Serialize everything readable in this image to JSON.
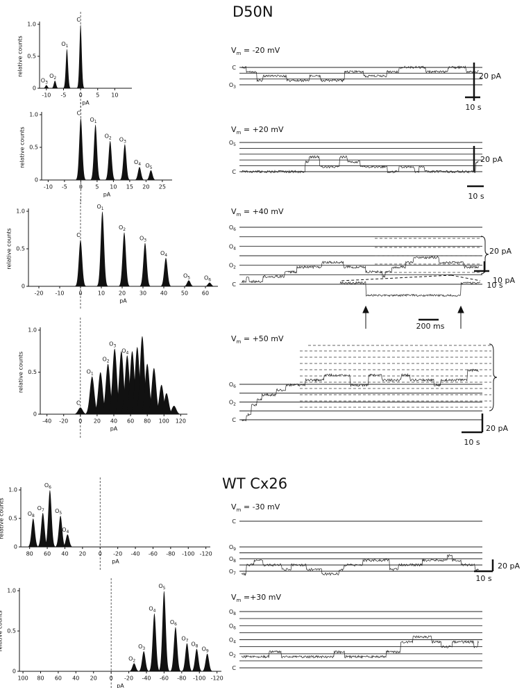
{
  "sections": [
    {
      "title": "D50N",
      "histograms": [
        {
          "ylabel": "relative counts",
          "xlabel": "pA",
          "xlim": [
            -12,
            15
          ],
          "xticks": [
            -10,
            -5,
            0,
            5,
            10
          ],
          "ylim": [
            0,
            1
          ],
          "yticks": [
            0,
            0.5,
            {
              "value": 1,
              "label": "1.0"
            }
          ],
          "peaks": [
            {
              "x": 0,
              "height": 1.0,
              "label": "C"
            },
            {
              "x": -4,
              "height": 0.62,
              "label": "O",
              "sub": "1"
            },
            {
              "x": -7.5,
              "height": 0.12,
              "label": "O",
              "sub": "2"
            },
            {
              "x": -10,
              "height": 0.05,
              "label": "O",
              "sub": "3"
            }
          ]
        },
        {
          "ylabel": "relative counts",
          "xlabel": "pA",
          "xlim": [
            -12,
            28
          ],
          "xticks": [
            -10,
            -5,
            0,
            5,
            10,
            15,
            20,
            25
          ],
          "ylim": [
            0,
            1
          ],
          "yticks": [
            0,
            0.5,
            {
              "value": 1,
              "label": "1.0"
            }
          ],
          "peaks": [
            {
              "x": 0,
              "height": 0.95,
              "label": "C"
            },
            {
              "x": 4.5,
              "height": 0.85,
              "label": "O",
              "sub": "1"
            },
            {
              "x": 9,
              "height": 0.6,
              "label": "O",
              "sub": "2"
            },
            {
              "x": 13.5,
              "height": 0.55,
              "label": "O",
              "sub": "3"
            },
            {
              "x": 18,
              "height": 0.2,
              "label": "O",
              "sub": "4"
            },
            {
              "x": 21.5,
              "height": 0.15,
              "label": "O",
              "sub": "5"
            }
          ]
        },
        {
          "ylabel": "relative counts",
          "xlabel": "pA",
          "xlim": [
            -25,
            66
          ],
          "xticks": [
            -20,
            -10,
            0,
            10,
            20,
            30,
            40,
            50,
            60
          ],
          "ylim": [
            0,
            1
          ],
          "yticks": [
            0,
            0.5,
            {
              "value": 1,
              "label": "1.0"
            }
          ],
          "peaks": [
            {
              "x": 0,
              "height": 0.62,
              "label": "C"
            },
            {
              "x": 10.5,
              "height": 1.0,
              "label": "O",
              "sub": "1"
            },
            {
              "x": 21,
              "height": 0.72,
              "label": "O",
              "sub": "2"
            },
            {
              "x": 31,
              "height": 0.58,
              "label": "O",
              "sub": "3"
            },
            {
              "x": 41,
              "height": 0.38,
              "label": "O",
              "sub": "4"
            },
            {
              "x": 52,
              "height": 0.08,
              "label": "O",
              "sub": "5"
            },
            {
              "x": 62,
              "height": 0.05,
              "label": "O",
              "sub": "6"
            }
          ]
        },
        {
          "ylabel": "relative counts",
          "xlabel": "pA",
          "xlim": [
            -48,
            128
          ],
          "xticks": [
            -40,
            -20,
            0,
            20,
            40,
            60,
            80,
            100,
            120
          ],
          "ylim": [
            0,
            1
          ],
          "yticks": [
            0,
            0.5,
            {
              "value": 1,
              "label": "1.0"
            }
          ],
          "peaks": [
            {
              "x": 0,
              "height": 0.08,
              "label": "C"
            },
            {
              "x": 14,
              "height": 0.45,
              "label": "O",
              "sub": "1"
            },
            {
              "x": 24,
              "height": 0.5,
              "label": null
            },
            {
              "x": 33,
              "height": 0.6,
              "label": "O",
              "sub": "2"
            },
            {
              "x": 41,
              "height": 0.78,
              "label": "O",
              "sub": "3"
            },
            {
              "x": 49,
              "height": 0.75,
              "label": null
            },
            {
              "x": 56,
              "height": 0.7,
              "label": "O",
              "sub": "4"
            },
            {
              "x": 62,
              "height": 0.75,
              "label": null
            },
            {
              "x": 68,
              "height": 0.8,
              "label": null
            },
            {
              "x": 74,
              "height": 0.93,
              "label": null
            },
            {
              "x": 80,
              "height": 0.6,
              "label": null
            },
            {
              "x": 88,
              "height": 0.55,
              "label": null
            },
            {
              "x": 97,
              "height": 0.35,
              "label": null
            },
            {
              "x": 103,
              "height": 0.25,
              "label": null
            },
            {
              "x": 112,
              "height": 0.1,
              "label": null
            }
          ]
        }
      ],
      "traces": [
        {
          "v": "V",
          "vsub": "m",
          "rest": " = -20 mV",
          "levels": [
            {
              "label": "C"
            },
            null,
            null,
            {
              "label": "O",
              "sub": "3"
            }
          ],
          "current": "20 pA",
          "time": "10 s"
        },
        {
          "v": "V",
          "vsub": "m",
          "rest": " = +20 mV",
          "levels": [
            {
              "label": "O",
              "sub": "5"
            },
            null,
            null,
            null,
            null,
            {
              "label": "C"
            }
          ],
          "current": "20 pA",
          "time": "10 s"
        },
        {
          "v": "V",
          "vsub": "m",
          "rest": " = +40 mV",
          "levels": [
            {
              "label": "O",
              "sub": "6"
            },
            null,
            {
              "label": "O",
              "sub": "4"
            },
            null,
            {
              "label": "O",
              "sub": "2"
            },
            null,
            {
              "label": "C"
            }
          ],
          "current": "20 pA",
          "time": "10 s",
          "inset": {
            "current": "10 pA",
            "time": "200 ms"
          }
        },
        {
          "v": "V",
          "vsub": "m",
          "rest": " = +50 mV",
          "levels": [
            {
              "label": "O",
              "sub": "6"
            },
            null,
            {
              "label": "O",
              "sub": "2"
            },
            null,
            {
              "label": "C"
            }
          ],
          "current": "20 pA",
          "time": "10 s"
        }
      ]
    },
    {
      "title": "WT Cx26",
      "histograms": [
        {
          "ylabel": "relative counts",
          "xlabel": "pA",
          "xlim": [
            90,
            -125
          ],
          "xticks": [
            80,
            60,
            40,
            20,
            0,
            -20,
            -40,
            -60,
            -80,
            -100,
            -120
          ],
          "ylim": [
            0,
            1
          ],
          "yticks": [
            0,
            0.5,
            {
              "value": 1,
              "label": "1.0"
            }
          ],
          "peaks": [
            {
              "x": 76,
              "height": 0.5,
              "label": "O",
              "sub": "8"
            },
            {
              "x": 65,
              "height": 0.6,
              "label": "O",
              "sub": "7"
            },
            {
              "x": 57,
              "height": 1.0,
              "label": "O",
              "sub": "6"
            },
            {
              "x": 45,
              "height": 0.55,
              "label": "O",
              "sub": "5"
            },
            {
              "x": 37,
              "height": 0.22,
              "label": "O",
              "sub": "4"
            }
          ]
        },
        {
          "ylabel": "relative counts",
          "xlabel": "pA",
          "xlim": [
            104,
            -125
          ],
          "xticks": [
            100,
            80,
            60,
            40,
            20,
            0,
            -20,
            -40,
            -60,
            -80,
            -100,
            -120
          ],
          "ylim": [
            0,
            1
          ],
          "yticks": [
            0,
            0.5,
            {
              "value": 1,
              "label": "1.0"
            }
          ],
          "peaks": [
            {
              "x": -26,
              "height": 0.1,
              "label": "O",
              "sub": "2"
            },
            {
              "x": -37,
              "height": 0.25,
              "label": "O",
              "sub": "3"
            },
            {
              "x": -49,
              "height": 0.72,
              "label": "O",
              "sub": "4"
            },
            {
              "x": -60,
              "height": 1.0,
              "label": "O",
              "sub": "5"
            },
            {
              "x": -73,
              "height": 0.55,
              "label": "O",
              "sub": "6"
            },
            {
              "x": -86,
              "height": 0.35,
              "label": "O",
              "sub": "7"
            },
            {
              "x": -97,
              "height": 0.28,
              "label": "O",
              "sub": "8"
            },
            {
              "x": -109,
              "height": 0.22,
              "label": "O",
              "sub": "9"
            }
          ]
        }
      ],
      "traces": [
        {
          "v": "V",
          "vsub": "m",
          "rest": " = -30 mV",
          "levels": [
            {
              "label": "C"
            },
            {
              "label": "O",
              "sub": "9"
            },
            null,
            {
              "label": "O",
              "sub": "8"
            },
            null,
            {
              "label": "O",
              "sub": "7"
            }
          ],
          "current": "20 pA",
          "time": "10 s"
        },
        {
          "v": "V",
          "vsub": "m",
          "rest": " =+30 mV",
          "levels": [
            {
              "label": "O",
              "sub": "8"
            },
            null,
            {
              "label": "O",
              "sub": "6"
            },
            null,
            {
              "label": "O",
              "sub": "4"
            },
            null,
            {
              "label": "O",
              "sub": "2"
            },
            null,
            {
              "label": "C"
            }
          ]
        }
      ]
    }
  ]
}
